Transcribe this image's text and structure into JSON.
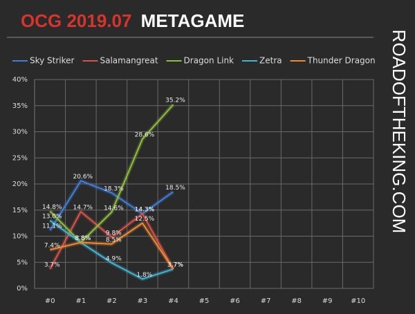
{
  "chart_data": {
    "type": "line",
    "title": {
      "highlight": "OCG 2019.07",
      "text": "METAGAME"
    },
    "watermark": "ROADOFTHEKING.COM",
    "categories": [
      "#0",
      "#1",
      "#2",
      "#3",
      "#4",
      "#5",
      "#6",
      "#7",
      "#8",
      "#9",
      "#10"
    ],
    "series": [
      {
        "name": "Sky Striker",
        "color": "#3f7fd9",
        "values": [
          11.1,
          20.6,
          18.3,
          14.3,
          18.5,
          null,
          null,
          null,
          null,
          null,
          null
        ],
        "value_labels": [
          "11.1%",
          "20.6%",
          "18.3%",
          "14.3%",
          "18.5%",
          null,
          null,
          null,
          null,
          null,
          null
        ]
      },
      {
        "name": "Salamangreat",
        "color": "#d9534a",
        "values": [
          3.7,
          14.7,
          9.8,
          14.3,
          3.7,
          null,
          null,
          null,
          null,
          null,
          null
        ],
        "value_labels": [
          "3.7%",
          "14.7%",
          "9.8%",
          "14.3%",
          "3.7%",
          null,
          null,
          null,
          null,
          null,
          null
        ]
      },
      {
        "name": "Dragon Link",
        "color": "#8fbf3a",
        "values": [
          14.8,
          8.8,
          14.6,
          28.6,
          35.2,
          null,
          null,
          null,
          null,
          null,
          null
        ],
        "value_labels": [
          "14.8%",
          "8.8%",
          "14.6%",
          "28.6%",
          "35.2%",
          null,
          null,
          null,
          null,
          null,
          null
        ]
      },
      {
        "name": "Zetra",
        "color": "#3fb6d4",
        "values": [
          13.0,
          8.8,
          4.9,
          1.8,
          3.7,
          null,
          null,
          null,
          null,
          null,
          null
        ],
        "value_labels": [
          "13.0%",
          "8.8%",
          "4.9%",
          "1.8%",
          "3.7%",
          null,
          null,
          null,
          null,
          null,
          null
        ]
      },
      {
        "name": "Thunder Dragon",
        "color": "#f08a30",
        "values": [
          7.4,
          8.8,
          8.5,
          12.5,
          3.7,
          null,
          null,
          null,
          null,
          null,
          null
        ],
        "value_labels": [
          "7.4%",
          "8.8%",
          "8.5%",
          "12.5%",
          "3.7%",
          null,
          null,
          null,
          null,
          null,
          null
        ]
      }
    ],
    "ylim": [
      0,
      40
    ],
    "yticks": [
      {
        "value": 0,
        "label": "0%"
      },
      {
        "value": 5,
        "label": "5%"
      },
      {
        "value": 10,
        "label": "10%"
      },
      {
        "value": 15,
        "label": "15%"
      },
      {
        "value": 20,
        "label": "20%"
      },
      {
        "value": 25,
        "label": "25%"
      },
      {
        "value": 30,
        "label": "30%"
      },
      {
        "value": 35,
        "label": "35%"
      },
      {
        "value": 40,
        "label": "40%"
      }
    ],
    "grid": true
  }
}
